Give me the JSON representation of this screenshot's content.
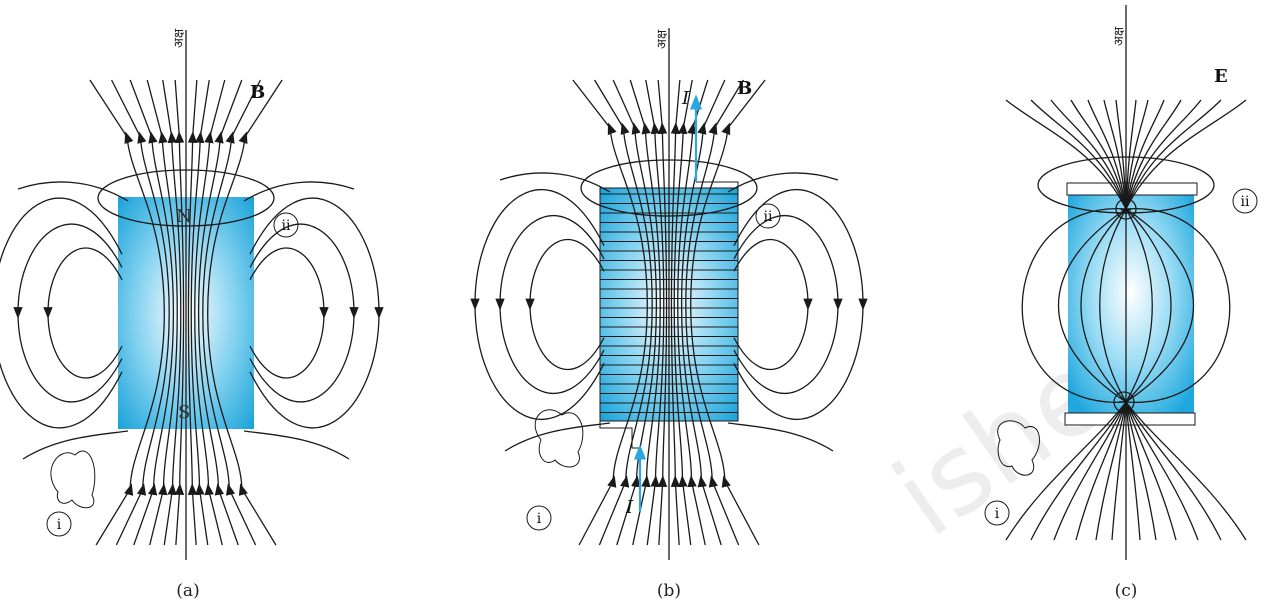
{
  "panels": [
    {
      "id": "a",
      "caption": "(a)",
      "axis_label": "अक्ष",
      "field_symbol": "B",
      "pole_top": "N",
      "pole_bottom": "S",
      "label_i": "i",
      "label_ii": "ii"
    },
    {
      "id": "b",
      "caption": "(b)",
      "axis_label": "अक्ष",
      "field_symbol": "B",
      "current_top": "I",
      "current_bottom": "I",
      "label_i": "i",
      "label_ii": "ii"
    },
    {
      "id": "c",
      "caption": "(c)",
      "axis_label": "अक्ष",
      "field_symbol": "E",
      "charge_top": "+",
      "charge_bottom": "−",
      "label_i": "i",
      "label_ii": "ii"
    }
  ],
  "watermark": "ished",
  "colors": {
    "block_edge": "#1aa3d9",
    "block_center": "#ffffff",
    "current_arrow": "#29a8e0",
    "line": "#1a1a1a"
  }
}
